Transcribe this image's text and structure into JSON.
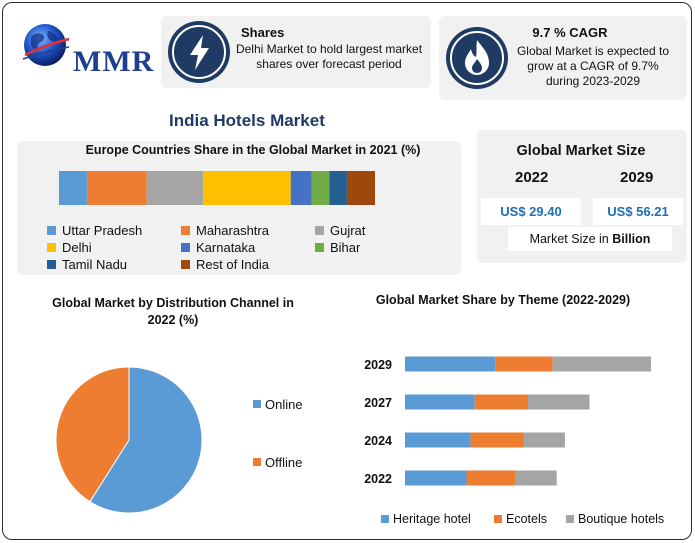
{
  "logo": {
    "text": "MMR",
    "icon": "globe-icon"
  },
  "info_cards": [
    {
      "title": "Shares",
      "text": "Delhi Market to hold largest market shares over forecast period",
      "icon": "lightning-icon"
    },
    {
      "title": "9.7 % CAGR",
      "text": "Global Market is expected to grow at a CAGR of 9.7% during 2023-2029",
      "icon": "flame-icon"
    }
  ],
  "main_title": "India Hotels Market",
  "market_size": {
    "title": "Global Market Size",
    "years": [
      "2022",
      "2029"
    ],
    "values": [
      "US$ 29.40",
      "US$ 56.21"
    ],
    "unit_prefix": "Market Size in ",
    "unit_bold": "Billion"
  },
  "colors": {
    "blue": "#5b9bd5",
    "orange": "#ed7d31",
    "gray": "#a5a5a5",
    "yellow": "#ffc000",
    "dark_blue": "#4472c4",
    "green": "#70ad47",
    "navy": "#255e91",
    "brown": "#9e480e"
  },
  "chart_data": [
    {
      "type": "bar",
      "orientation": "horizontal-stacked",
      "title": "Europe Countries Share in the Global Market in 2021 (%)",
      "series": [
        {
          "name": "Uttar Pradesh",
          "values": [
            8
          ],
          "color": "#5b9bd5"
        },
        {
          "name": "Maharashtra",
          "values": [
            17
          ],
          "color": "#ed7d31"
        },
        {
          "name": "Gujrat",
          "values": [
            16
          ],
          "color": "#a5a5a5"
        },
        {
          "name": "Delhi",
          "values": [
            25
          ],
          "color": "#ffc000"
        },
        {
          "name": "Karnataka",
          "values": [
            6
          ],
          "color": "#4472c4"
        },
        {
          "name": "Bihar",
          "values": [
            5
          ],
          "color": "#70ad47"
        },
        {
          "name": "Tamil Nadu",
          "values": [
            5
          ],
          "color": "#255e91"
        },
        {
          "name": "Rest of India",
          "values": [
            8
          ],
          "color": "#9e480e"
        }
      ],
      "legend": "bottom"
    },
    {
      "type": "pie",
      "title": "Global Market by Distribution Channel in 2022 (%)",
      "categories": [
        "Online",
        "Offline"
      ],
      "values": [
        59,
        41
      ],
      "colors": [
        "#5b9bd5",
        "#ed7d31"
      ],
      "legend": "right"
    },
    {
      "type": "bar",
      "orientation": "horizontal-stacked",
      "title": "Global Market Share by Theme (2022-2029)",
      "categories": [
        "2029",
        "2027",
        "2024",
        "2022"
      ],
      "series": [
        {
          "name": "Heritage hotel",
          "values": [
            22,
            17,
            16,
            15
          ],
          "color": "#5b9bd5"
        },
        {
          "name": "Ecotels",
          "values": [
            14,
            13,
            13,
            12
          ],
          "color": "#ed7d31"
        },
        {
          "name": "Boutique hotels",
          "values": [
            24,
            15,
            10,
            10
          ],
          "color": "#a5a5a5"
        }
      ],
      "xlim": [
        0,
        70
      ],
      "legend": "bottom"
    }
  ]
}
